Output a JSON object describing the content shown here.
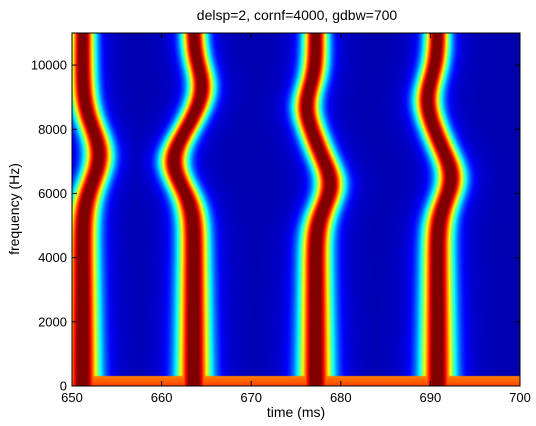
{
  "chart_data": {
    "type": "heatmap",
    "title": "delsp=2, cornf=4000, gdbw=700",
    "xlabel": "time (ms)",
    "ylabel": "frequency (Hz)",
    "xlim": [
      650,
      700
    ],
    "ylim": [
      0,
      11000
    ],
    "x_ticks": [
      650,
      660,
      670,
      680,
      690,
      700
    ],
    "y_ticks": [
      0,
      2000,
      4000,
      6000,
      8000,
      10000
    ],
    "colormap": "jet",
    "background_color": "#00008f",
    "grid": false,
    "baseline_band": {
      "freq_max": 300,
      "color": "#ffff30"
    },
    "ridges": [
      {
        "center_ms": 651.2,
        "lf_width_ms": 1.8,
        "hf_width_ms": 1.3,
        "wiggle": [
          {
            "freq": 7200,
            "dt_ms": 1.8,
            "width_hz": 1200
          }
        ]
      },
      {
        "center_ms": 663.6,
        "lf_width_ms": 1.8,
        "hf_width_ms": 1.3,
        "wiggle": [
          {
            "freq": 7000,
            "dt_ms": -2.2,
            "width_hz": 1100
          },
          {
            "freq": 9300,
            "dt_ms": 0.9,
            "width_hz": 900
          }
        ]
      },
      {
        "center_ms": 677.2,
        "lf_width_ms": 1.8,
        "hf_width_ms": 1.3,
        "wiggle": [
          {
            "freq": 6300,
            "dt_ms": 1.6,
            "width_hz": 1000
          },
          {
            "freq": 8700,
            "dt_ms": -1.0,
            "width_hz": 900
          }
        ]
      },
      {
        "center_ms": 690.8,
        "lf_width_ms": 1.8,
        "hf_width_ms": 1.3,
        "wiggle": [
          {
            "freq": 6500,
            "dt_ms": 1.5,
            "width_hz": 1000
          },
          {
            "freq": 8900,
            "dt_ms": -1.1,
            "width_hz": 1000
          }
        ]
      }
    ]
  }
}
